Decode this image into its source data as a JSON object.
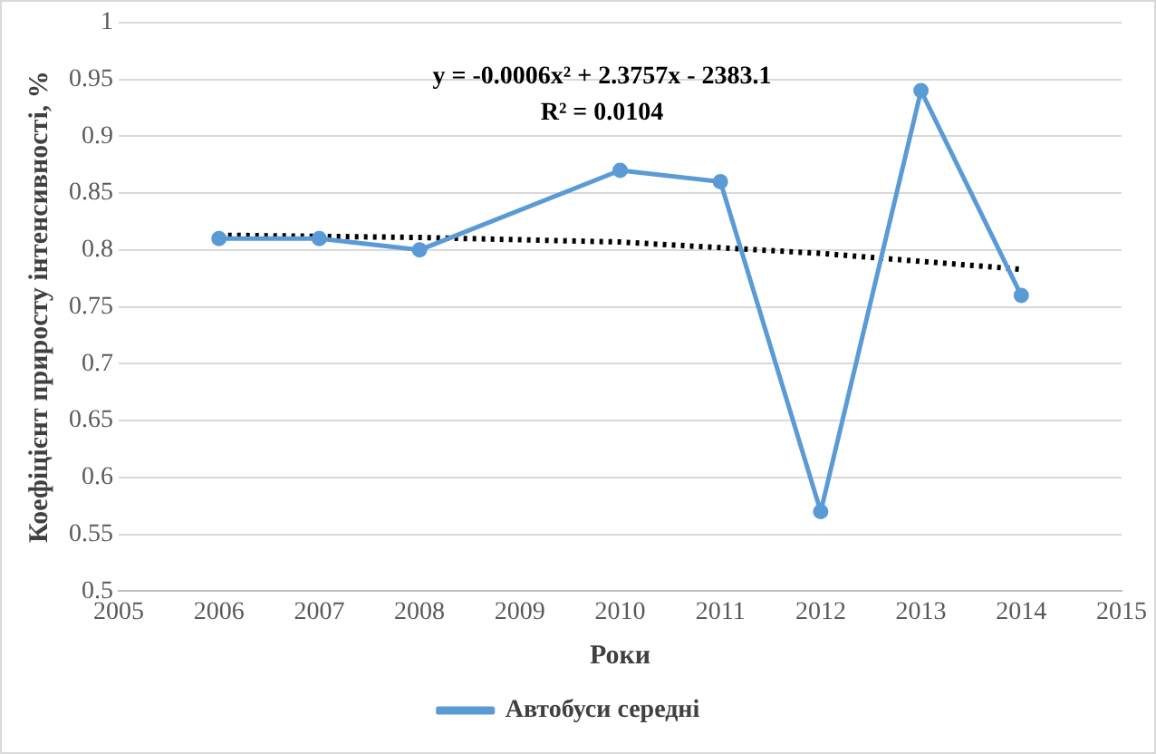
{
  "chart_data": {
    "type": "line",
    "xlabel": "Роки",
    "ylabel": "Коефіцієнт приросту інтенсивності, %",
    "annotations": [
      "y = -0.0006x² + 2.3757x - 2383.1",
      "R² = 0.0104"
    ],
    "xlim": [
      2005,
      2015
    ],
    "xticks": [
      2005,
      2006,
      2007,
      2008,
      2009,
      2010,
      2011,
      2012,
      2013,
      2014,
      2015
    ],
    "ylim": [
      0.5,
      1
    ],
    "yticks": [
      0.5,
      0.55,
      0.6,
      0.65,
      0.7,
      0.75,
      0.8,
      0.85,
      0.9,
      0.95,
      1
    ],
    "grid": "y",
    "legend": "bottom",
    "series": [
      {
        "name": "Автобуси середні",
        "color": "#5b9bd5",
        "marker": "circle",
        "line_style": "solid",
        "x": [
          2006,
          2007,
          2008,
          2010,
          2011,
          2012,
          2013,
          2014
        ],
        "values": [
          0.81,
          0.81,
          0.8,
          0.87,
          0.86,
          0.57,
          0.94,
          0.76
        ]
      },
      {
        "color": "#000000",
        "marker": "none",
        "line_style": "dotted",
        "x": [
          2006,
          2008,
          2010,
          2012,
          2014
        ],
        "values": [
          0.813,
          0.811,
          0.807,
          0.797,
          0.783
        ]
      }
    ]
  }
}
